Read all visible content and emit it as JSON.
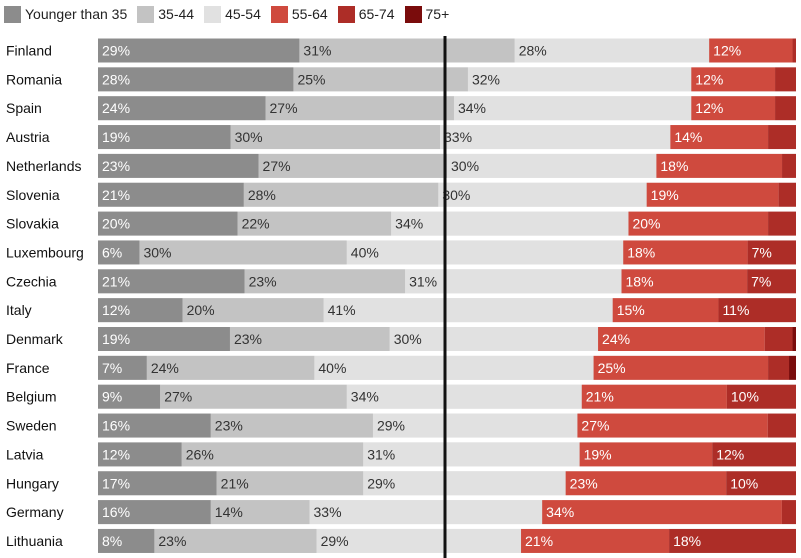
{
  "chart_data": {
    "type": "bar",
    "stacked": true,
    "orientation": "horizontal",
    "center_line": "between 35-44 and 45-54",
    "categories": [
      "Finland",
      "Romania",
      "Spain",
      "Austria",
      "Netherlands",
      "Slovenia",
      "Slovakia",
      "Luxembourg",
      "Czechia",
      "Italy",
      "Denmark",
      "France",
      "Belgium",
      "Sweden",
      "Latvia",
      "Hungary",
      "Germany",
      "Lithuania"
    ],
    "series": [
      {
        "name": "Younger than 35",
        "color": "#8c8c8c",
        "label_color": "#ffffff",
        "values": [
          29,
          28,
          24,
          19,
          23,
          21,
          20,
          6,
          21,
          12,
          19,
          7,
          9,
          16,
          12,
          17,
          16,
          8
        ],
        "labels": [
          "29%",
          "28%",
          "24%",
          "19%",
          "23%",
          "21%",
          "20%",
          "6%",
          "21%",
          "12%",
          "19%",
          "7%",
          "9%",
          "16%",
          "12%",
          "17%",
          "16%",
          "8%"
        ]
      },
      {
        "name": "35-44",
        "color": "#c3c3c3",
        "label_color": "#333333",
        "values": [
          31,
          25,
          27,
          30,
          27,
          28,
          22,
          30,
          23,
          20,
          23,
          24,
          27,
          23,
          26,
          21,
          14,
          23
        ],
        "labels": [
          "31%",
          "25%",
          "27%",
          "30%",
          "27%",
          "28%",
          "22%",
          "30%",
          "23%",
          "20%",
          "23%",
          "24%",
          "27%",
          "23%",
          "26%",
          "21%",
          "14%",
          "23%"
        ]
      },
      {
        "name": "45-54",
        "color": "#e1e1e1",
        "label_color": "#333333",
        "values": [
          28,
          32,
          34,
          33,
          30,
          30,
          34,
          40,
          31,
          41,
          30,
          40,
          34,
          29,
          31,
          29,
          33,
          29
        ],
        "labels": [
          "28%",
          "32%",
          "34%",
          "33%",
          "30%",
          "30%",
          "34%",
          "40%",
          "31%",
          "41%",
          "30%",
          "40%",
          "34%",
          "29%",
          "31%",
          "29%",
          "33%",
          "29%"
        ]
      },
      {
        "name": "55-64",
        "color": "#cf4a3e",
        "label_color": "#ffffff",
        "values": [
          12,
          12,
          12,
          14,
          18,
          19,
          20,
          18,
          18,
          15,
          24,
          25,
          21,
          27,
          19,
          23,
          34,
          21
        ],
        "labels": [
          "12%",
          "12%",
          "12%",
          "14%",
          "18%",
          "19%",
          "20%",
          "18%",
          "18%",
          "15%",
          "24%",
          "25%",
          "21%",
          "27%",
          "19%",
          "23%",
          "34%",
          "21%"
        ]
      },
      {
        "name": "65-74",
        "color": "#ad2d27",
        "label_color": "#ffffff",
        "values": [
          0.5,
          3,
          3,
          4,
          2,
          2.5,
          4,
          7,
          7,
          11,
          4,
          3,
          10,
          4,
          12,
          10,
          2,
          18
        ],
        "labels": [
          "",
          "",
          "",
          "",
          "",
          "",
          "",
          "7%",
          "7%",
          "11%",
          "",
          "",
          "10%",
          "",
          "12%",
          "10%",
          "",
          "18%"
        ]
      },
      {
        "name": "75+",
        "color": "#7a0c0c",
        "label_color": "#ffffff",
        "values": [
          0,
          0,
          0,
          0,
          0,
          0,
          0,
          0,
          0,
          0,
          0.5,
          1,
          0,
          0,
          0,
          0,
          0,
          0
        ],
        "labels": [
          "",
          "",
          "",
          "",
          "",
          "",
          "",
          "",
          "",
          "",
          "",
          "",
          "",
          "",
          "",
          "",
          "",
          ""
        ]
      }
    ]
  }
}
